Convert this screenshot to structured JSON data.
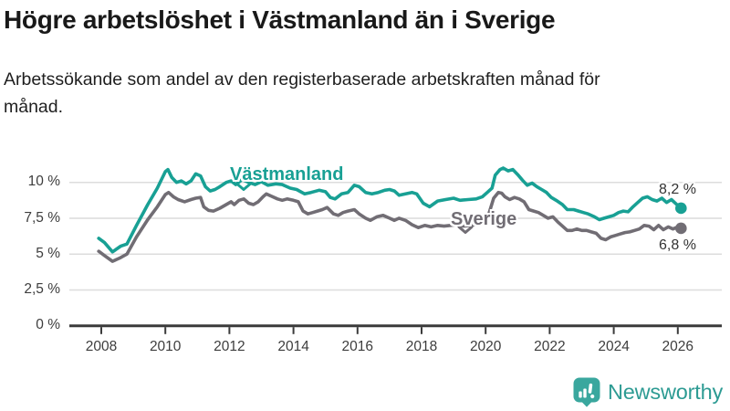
{
  "chart_data": {
    "type": "line",
    "title": "Högre arbetslöshet i Västmanland än i Sverige",
    "subtitle": "Arbetssökande som andel av den registerbaserade arbetskraften månad för månad.",
    "unit": "%",
    "grid": "horizontal",
    "legend_position": "inline-labels",
    "xlim": [
      2007.9,
      2026.6
    ],
    "ylim": [
      0,
      11.8
    ],
    "y_ticks": {
      "values": [
        10,
        7.5,
        5,
        2.5,
        0
      ],
      "labels": [
        "10 %",
        "7,5 %",
        "5 %",
        "2,5 %",
        "0 %"
      ]
    },
    "x_ticks": {
      "values": [
        2008,
        2010,
        2012,
        2014,
        2016,
        2018,
        2020,
        2022,
        2024,
        2026
      ],
      "labels": [
        "2008",
        "2010",
        "2012",
        "2014",
        "2016",
        "2018",
        "2020",
        "2022",
        "2024",
        "2026"
      ]
    },
    "series": [
      {
        "name": "Västmanland",
        "color": "#18a094",
        "end_label": "8,2 %",
        "last_value": 8.2,
        "points": [
          [
            2007.92,
            6.1
          ],
          [
            2008.1,
            5.8
          ],
          [
            2008.35,
            5.15
          ],
          [
            2008.6,
            5.55
          ],
          [
            2008.8,
            5.7
          ],
          [
            2009.1,
            7.0
          ],
          [
            2009.45,
            8.45
          ],
          [
            2009.75,
            9.6
          ],
          [
            2010.0,
            10.75
          ],
          [
            2010.08,
            10.9
          ],
          [
            2010.2,
            10.35
          ],
          [
            2010.35,
            10.0
          ],
          [
            2010.5,
            10.1
          ],
          [
            2010.65,
            9.9
          ],
          [
            2010.8,
            10.1
          ],
          [
            2010.95,
            10.6
          ],
          [
            2011.1,
            10.45
          ],
          [
            2011.25,
            9.7
          ],
          [
            2011.4,
            9.4
          ],
          [
            2011.55,
            9.5
          ],
          [
            2011.7,
            9.7
          ],
          [
            2011.9,
            10.0
          ],
          [
            2012.05,
            10.1
          ],
          [
            2012.2,
            9.85
          ],
          [
            2012.4,
            10.2
          ],
          [
            2012.6,
            10.0
          ],
          [
            2012.8,
            9.85
          ],
          [
            2013.0,
            10.05
          ],
          [
            2013.2,
            9.8
          ],
          [
            2013.45,
            9.9
          ],
          [
            2013.65,
            9.85
          ],
          [
            2013.9,
            9.6
          ],
          [
            2014.1,
            9.5
          ],
          [
            2014.35,
            9.2
          ],
          [
            2014.55,
            9.3
          ],
          [
            2014.8,
            9.45
          ],
          [
            2015.0,
            9.35
          ],
          [
            2015.15,
            8.95
          ],
          [
            2015.3,
            8.85
          ],
          [
            2015.5,
            9.2
          ],
          [
            2015.7,
            9.3
          ],
          [
            2015.9,
            9.8
          ],
          [
            2016.05,
            9.7
          ],
          [
            2016.25,
            9.3
          ],
          [
            2016.45,
            9.2
          ],
          [
            2016.65,
            9.3
          ],
          [
            2016.85,
            9.45
          ],
          [
            2017.0,
            9.5
          ],
          [
            2017.15,
            9.4
          ],
          [
            2017.3,
            9.1
          ],
          [
            2017.5,
            9.2
          ],
          [
            2017.7,
            9.3
          ],
          [
            2017.85,
            9.2
          ],
          [
            2018.05,
            8.55
          ],
          [
            2018.25,
            8.3
          ],
          [
            2018.5,
            8.7
          ],
          [
            2018.75,
            8.8
          ],
          [
            2019.0,
            8.9
          ],
          [
            2019.2,
            8.75
          ],
          [
            2019.45,
            8.8
          ],
          [
            2019.7,
            8.85
          ],
          [
            2019.9,
            9.0
          ],
          [
            2020.05,
            9.3
          ],
          [
            2020.2,
            9.6
          ],
          [
            2020.3,
            10.5
          ],
          [
            2020.45,
            10.9
          ],
          [
            2020.55,
            11.0
          ],
          [
            2020.7,
            10.8
          ],
          [
            2020.85,
            10.9
          ],
          [
            2021.0,
            10.55
          ],
          [
            2021.15,
            10.15
          ],
          [
            2021.3,
            9.8
          ],
          [
            2021.45,
            9.95
          ],
          [
            2021.6,
            9.7
          ],
          [
            2021.75,
            9.5
          ],
          [
            2021.9,
            9.3
          ],
          [
            2022.05,
            8.95
          ],
          [
            2022.2,
            8.75
          ],
          [
            2022.4,
            8.45
          ],
          [
            2022.55,
            8.1
          ],
          [
            2022.75,
            8.1
          ],
          [
            2022.9,
            8.0
          ],
          [
            2023.05,
            7.9
          ],
          [
            2023.2,
            7.8
          ],
          [
            2023.4,
            7.6
          ],
          [
            2023.55,
            7.4
          ],
          [
            2023.7,
            7.5
          ],
          [
            2023.85,
            7.6
          ],
          [
            2024.0,
            7.7
          ],
          [
            2024.15,
            7.9
          ],
          [
            2024.3,
            8.0
          ],
          [
            2024.45,
            7.95
          ],
          [
            2024.6,
            8.3
          ],
          [
            2024.75,
            8.6
          ],
          [
            2024.9,
            8.9
          ],
          [
            2025.05,
            9.0
          ],
          [
            2025.2,
            8.8
          ],
          [
            2025.35,
            8.7
          ],
          [
            2025.5,
            8.9
          ],
          [
            2025.65,
            8.6
          ],
          [
            2025.8,
            8.8
          ],
          [
            2025.95,
            8.5
          ],
          [
            2026.1,
            8.2
          ]
        ]
      },
      {
        "name": "Sverige",
        "color": "#716d74",
        "end_label": "6,8 %",
        "last_value": 6.8,
        "points": [
          [
            2007.92,
            5.2
          ],
          [
            2008.1,
            4.9
          ],
          [
            2008.35,
            4.5
          ],
          [
            2008.6,
            4.75
          ],
          [
            2008.8,
            5.0
          ],
          [
            2009.1,
            6.2
          ],
          [
            2009.45,
            7.4
          ],
          [
            2009.75,
            8.3
          ],
          [
            2010.0,
            9.15
          ],
          [
            2010.1,
            9.3
          ],
          [
            2010.25,
            9.0
          ],
          [
            2010.4,
            8.8
          ],
          [
            2010.6,
            8.65
          ],
          [
            2010.8,
            8.8
          ],
          [
            2010.95,
            8.9
          ],
          [
            2011.1,
            8.95
          ],
          [
            2011.2,
            8.3
          ],
          [
            2011.35,
            8.05
          ],
          [
            2011.5,
            8.0
          ],
          [
            2011.7,
            8.2
          ],
          [
            2011.9,
            8.45
          ],
          [
            2012.05,
            8.65
          ],
          [
            2012.15,
            8.45
          ],
          [
            2012.3,
            8.75
          ],
          [
            2012.45,
            8.85
          ],
          [
            2012.6,
            8.55
          ],
          [
            2012.75,
            8.45
          ],
          [
            2012.9,
            8.65
          ],
          [
            2013.05,
            9.0
          ],
          [
            2013.15,
            9.2
          ],
          [
            2013.3,
            9.05
          ],
          [
            2013.5,
            8.85
          ],
          [
            2013.65,
            8.75
          ],
          [
            2013.8,
            8.85
          ],
          [
            2014.0,
            8.75
          ],
          [
            2014.15,
            8.65
          ],
          [
            2014.3,
            8.0
          ],
          [
            2014.45,
            7.8
          ],
          [
            2014.6,
            7.9
          ],
          [
            2014.75,
            8.0
          ],
          [
            2014.9,
            8.1
          ],
          [
            2015.05,
            8.25
          ],
          [
            2015.25,
            7.8
          ],
          [
            2015.4,
            7.7
          ],
          [
            2015.55,
            7.9
          ],
          [
            2015.7,
            8.0
          ],
          [
            2015.9,
            8.1
          ],
          [
            2016.05,
            7.8
          ],
          [
            2016.25,
            7.5
          ],
          [
            2016.4,
            7.35
          ],
          [
            2016.6,
            7.6
          ],
          [
            2016.8,
            7.7
          ],
          [
            2017.0,
            7.5
          ],
          [
            2017.15,
            7.35
          ],
          [
            2017.3,
            7.5
          ],
          [
            2017.5,
            7.35
          ],
          [
            2017.7,
            7.05
          ],
          [
            2017.9,
            6.85
          ],
          [
            2018.1,
            7.0
          ],
          [
            2018.3,
            6.9
          ],
          [
            2018.5,
            7.0
          ],
          [
            2018.7,
            6.95
          ],
          [
            2018.9,
            7.0
          ],
          [
            2019.1,
            7.05
          ],
          [
            2019.3,
            6.95
          ],
          [
            2019.5,
            7.0
          ],
          [
            2019.7,
            7.05
          ],
          [
            2019.9,
            7.15
          ],
          [
            2020.1,
            7.8
          ],
          [
            2020.25,
            8.9
          ],
          [
            2020.4,
            9.3
          ],
          [
            2020.5,
            9.25
          ],
          [
            2020.6,
            9.0
          ],
          [
            2020.75,
            8.8
          ],
          [
            2020.9,
            8.95
          ],
          [
            2021.05,
            8.85
          ],
          [
            2021.2,
            8.65
          ],
          [
            2021.35,
            8.1
          ],
          [
            2021.5,
            8.0
          ],
          [
            2021.65,
            7.9
          ],
          [
            2021.8,
            7.7
          ],
          [
            2021.95,
            7.5
          ],
          [
            2022.1,
            7.6
          ],
          [
            2022.25,
            7.25
          ],
          [
            2022.4,
            6.95
          ],
          [
            2022.55,
            6.65
          ],
          [
            2022.7,
            6.65
          ],
          [
            2022.85,
            6.75
          ],
          [
            2023.0,
            6.65
          ],
          [
            2023.15,
            6.65
          ],
          [
            2023.3,
            6.55
          ],
          [
            2023.45,
            6.45
          ],
          [
            2023.6,
            6.1
          ],
          [
            2023.75,
            6.0
          ],
          [
            2023.9,
            6.2
          ],
          [
            2024.05,
            6.3
          ],
          [
            2024.2,
            6.4
          ],
          [
            2024.35,
            6.5
          ],
          [
            2024.5,
            6.55
          ],
          [
            2024.65,
            6.65
          ],
          [
            2024.8,
            6.75
          ],
          [
            2024.95,
            7.0
          ],
          [
            2025.1,
            6.95
          ],
          [
            2025.25,
            6.7
          ],
          [
            2025.4,
            7.0
          ],
          [
            2025.55,
            6.7
          ],
          [
            2025.7,
            6.9
          ],
          [
            2025.85,
            6.75
          ],
          [
            2026.0,
            6.9
          ],
          [
            2026.1,
            6.8
          ]
        ]
      }
    ]
  },
  "footer": {
    "brand": "Newsworthy"
  }
}
